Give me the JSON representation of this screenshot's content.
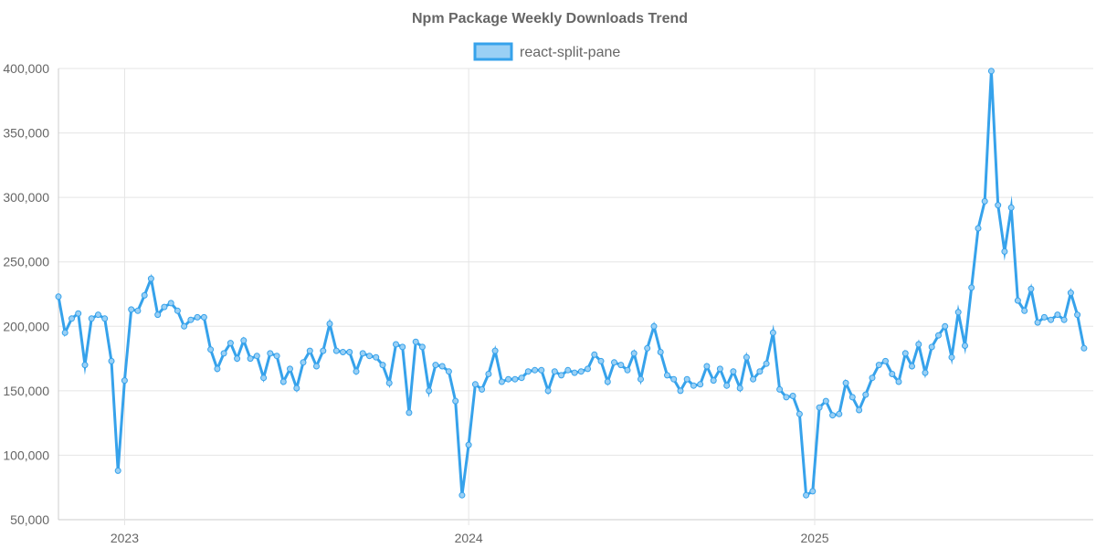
{
  "chart_data": {
    "type": "line",
    "title": "Npm Package Weekly Downloads Trend",
    "legend": {
      "position": "top",
      "label": "react-split-pane"
    },
    "colors": {
      "line": "#36a2eb",
      "fill": "#9ad0f5",
      "grid": "#e5e5e5",
      "text": "#666666"
    },
    "xlabel": "",
    "ylabel": "",
    "ylim": [
      50000,
      400000
    ],
    "y_ticks": [
      50000,
      100000,
      150000,
      200000,
      250000,
      300000,
      350000,
      400000
    ],
    "y_tick_labels": [
      "50,000",
      "100,000",
      "150,000",
      "200,000",
      "250,000",
      "300,000",
      "350,000",
      "400,000"
    ],
    "x_range_weeks": [
      0,
      156.4
    ],
    "x_ticks": [
      {
        "label": "2023",
        "week": 10
      },
      {
        "label": "2024",
        "week": 62
      },
      {
        "label": "2025",
        "week": 114.3
      }
    ],
    "series": [
      {
        "name": "react-split-pane",
        "values": [
          223000,
          195000,
          206000,
          210000,
          170000,
          206000,
          209000,
          206000,
          173000,
          88000,
          158000,
          213000,
          212000,
          224000,
          237000,
          209000,
          215000,
          218000,
          212000,
          200000,
          205000,
          207000,
          207000,
          182000,
          167000,
          179000,
          187000,
          175000,
          189000,
          175000,
          177000,
          160000,
          179000,
          177000,
          157000,
          167000,
          152000,
          172000,
          181000,
          169000,
          181000,
          202000,
          181000,
          180000,
          180000,
          165000,
          179000,
          177000,
          176000,
          170000,
          156000,
          186000,
          184000,
          133000,
          188000,
          184000,
          150000,
          170000,
          169000,
          165000,
          142000,
          69000,
          108000,
          155000,
          151000,
          163000,
          181000,
          157000,
          159000,
          159000,
          160000,
          165000,
          166000,
          166000,
          150000,
          165000,
          162000,
          166000,
          164000,
          165000,
          167000,
          178000,
          173000,
          157000,
          172000,
          170000,
          166000,
          179000,
          159000,
          183000,
          200000,
          180000,
          162000,
          159000,
          150000,
          159000,
          154000,
          155000,
          169000,
          158000,
          167000,
          154000,
          165000,
          152000,
          176000,
          159000,
          165000,
          171000,
          195000,
          151000,
          145000,
          146000,
          132000,
          69000,
          72000,
          137000,
          142000,
          131000,
          132000,
          156000,
          145000,
          135000,
          147000,
          160000,
          170000,
          173000,
          163000,
          157000,
          179000,
          169000,
          186000,
          164000,
          184000,
          193000,
          200000,
          176000,
          211000,
          185000,
          230000,
          276000,
          297000,
          398000,
          294000,
          258000,
          292000,
          220000,
          212000,
          229000,
          203000,
          207000,
          205000,
          209000,
          205000,
          226000,
          209000,
          183000
        ]
      }
    ]
  }
}
